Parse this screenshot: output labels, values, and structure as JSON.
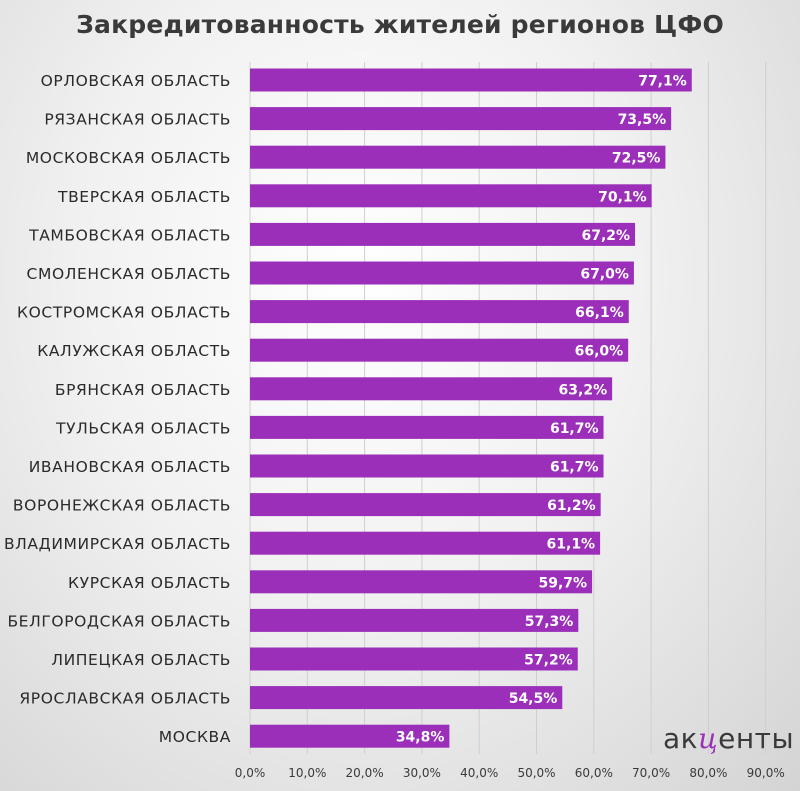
{
  "chart_data": {
    "type": "bar",
    "orientation": "horizontal",
    "title": "Закредитованность жителей регионов ЦФО",
    "categories": [
      "ОРЛОВСКАЯ ОБЛАСТЬ",
      "РЯЗАНСКАЯ ОБЛАСТЬ",
      "МОСКОВСКАЯ ОБЛАСТЬ",
      "ТВЕРСКАЯ ОБЛАСТЬ",
      "ТАМБОВСКАЯ ОБЛАСТЬ",
      "СМОЛЕНСКАЯ ОБЛАСТЬ",
      "КОСТРОМСКАЯ ОБЛАСТЬ",
      "КАЛУЖСКАЯ ОБЛАСТЬ",
      "БРЯНСКАЯ ОБЛАСТЬ",
      "ТУЛЬСКАЯ ОБЛАСТЬ",
      "ИВАНОВСКАЯ ОБЛАСТЬ",
      "ВОРОНЕЖСКАЯ ОБЛАСТЬ",
      "ВЛАДИМИРСКАЯ ОБЛАСТЬ",
      "КУРСКАЯ ОБЛАСТЬ",
      "БЕЛГОРОДСКАЯ ОБЛАСТЬ",
      "ЛИПЕЦКАЯ ОБЛАСТЬ",
      "ЯРОСЛАВСКАЯ ОБЛАСТЬ",
      "МОСКВА"
    ],
    "values": [
      77.1,
      73.5,
      72.5,
      70.1,
      67.2,
      67.0,
      66.1,
      66.0,
      63.2,
      61.7,
      61.7,
      61.2,
      61.1,
      59.7,
      57.3,
      57.2,
      54.5,
      34.8
    ],
    "data_labels": [
      "77,1%",
      "73,5%",
      "72,5%",
      "70,1%",
      "67,2%",
      "67,0%",
      "66,1%",
      "66,0%",
      "63,2%",
      "61,7%",
      "61,7%",
      "61,2%",
      "61,1%",
      "59,7%",
      "57,3%",
      "57,2%",
      "54,5%",
      "34,8%"
    ],
    "x_ticks": [
      0,
      10,
      20,
      30,
      40,
      50,
      60,
      70,
      80,
      90
    ],
    "x_tick_labels": [
      "0,0%",
      "10,0%",
      "20,0%",
      "30,0%",
      "40,0%",
      "50,0%",
      "60,0%",
      "70,0%",
      "80,0%",
      "90,0%"
    ],
    "xlim": [
      0,
      90
    ],
    "grid": "vertical",
    "bar_color": "#9b2fb9"
  },
  "logo": {
    "prefix": "ак",
    "accent": "ц",
    "suffix": "енты"
  }
}
